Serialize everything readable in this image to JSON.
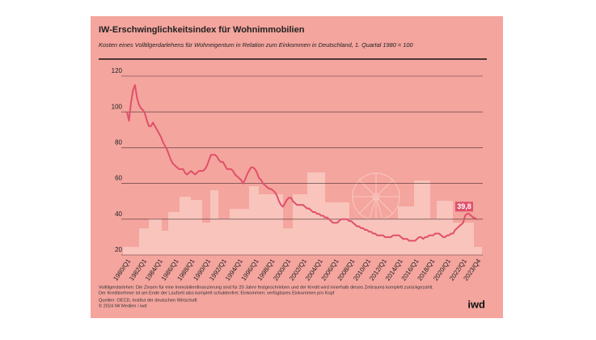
{
  "chart_data": {
    "type": "line",
    "title": "IW-Erschwinglichkeitsindex für Wohnimmobilien",
    "subtitle": "Kosten eines Volltilgerdarlehens für Wohneigentum in Relation zum Einkommen in Deutschland, 1. Quartal 1980 = 100",
    "notes": [
      "Volltilgerdarlehen: Die Zinsen für eine Immobilienfinanzierung sind für 20 Jahre festgeschrieben und der Kredit wird innerhalb dieses Zeitraums komplett zurückgezahlt.",
      "Der Kreditnehmer ist am Ende der Laufzeit also komplett schuldenfrei; Einkommen: verfügbares Einkommen pro Kopf",
      "Quellen: OECD, Institut der deutschen Wirtschaft",
      "© 2024 IW Medien / iwd"
    ],
    "logo": "iwd",
    "categories": [
      "1980/Q1",
      null,
      null,
      null,
      null,
      null,
      null,
      null,
      "1982/Q1",
      null,
      null,
      null,
      null,
      null,
      null,
      null,
      "1984/Q1",
      null,
      null,
      null,
      null,
      null,
      null,
      null,
      "1986/Q1",
      null,
      null,
      null,
      null,
      null,
      null,
      null,
      "1988/Q1",
      null,
      null,
      null,
      null,
      null,
      null,
      null,
      "1990/Q1",
      null,
      null,
      null,
      null,
      null,
      null,
      null,
      "1992/Q1",
      null,
      null,
      null,
      null,
      null,
      null,
      null,
      "1994/Q1",
      null,
      null,
      null,
      null,
      null,
      null,
      null,
      "1996/Q1",
      null,
      null,
      null,
      null,
      null,
      null,
      null,
      "1998/Q1",
      null,
      null,
      null,
      null,
      null,
      null,
      null,
      "2000/Q1",
      null,
      null,
      null,
      null,
      null,
      null,
      null,
      "2002/Q1",
      null,
      null,
      null,
      null,
      null,
      null,
      null,
      "2004/Q1",
      null,
      null,
      null,
      null,
      null,
      null,
      null,
      "2006/Q1",
      null,
      null,
      null,
      null,
      null,
      null,
      null,
      "2008/Q1",
      null,
      null,
      null,
      null,
      null,
      null,
      null,
      "2010/Q1",
      null,
      null,
      null,
      null,
      null,
      null,
      null,
      "2012/Q1",
      null,
      null,
      null,
      null,
      null,
      null,
      null,
      "2014/Q1",
      null,
      null,
      null,
      null,
      null,
      null,
      null,
      "2016/Q1",
      null,
      null,
      null,
      null,
      null,
      null,
      null,
      "2018/Q1",
      null,
      null,
      null,
      null,
      null,
      null,
      null,
      "2020/Q1",
      null,
      null,
      null,
      null,
      null,
      null,
      null,
      "2022/Q1",
      null,
      null,
      null,
      null,
      null,
      null,
      "2023/Q4"
    ],
    "series": [
      {
        "color": "#e0506a",
        "values": [
          100,
          95,
          105,
          112,
          115,
          108,
          104,
          102,
          101,
          99,
          95,
          92,
          92,
          94,
          92,
          90,
          88,
          86,
          83,
          81,
          79,
          76,
          73,
          71,
          70,
          69,
          68,
          68,
          68,
          66,
          65,
          66,
          67,
          66,
          65,
          66,
          67,
          67,
          67,
          68,
          70,
          73,
          76,
          76,
          76,
          75,
          73,
          72,
          72,
          70,
          68,
          68,
          68,
          67,
          65,
          64,
          63,
          62,
          60,
          62,
          65,
          67,
          69,
          69,
          68,
          66,
          63,
          62,
          60,
          59,
          58,
          57,
          57,
          56,
          55,
          53,
          50,
          48,
          47,
          49,
          51,
          52,
          52,
          50,
          49,
          48,
          48,
          48,
          48,
          47,
          46,
          46,
          45,
          44,
          44,
          43,
          43,
          42,
          42,
          41,
          41,
          40,
          39,
          38,
          38,
          38,
          39,
          40,
          40,
          40,
          40,
          39,
          39,
          38,
          37,
          36,
          36,
          35,
          35,
          34,
          34,
          33,
          33,
          32,
          32,
          31,
          31,
          31,
          31,
          30,
          30,
          30,
          30,
          31,
          31,
          31,
          31,
          30,
          29,
          29,
          29,
          28,
          28,
          28,
          28,
          29,
          30,
          30,
          29,
          30,
          30,
          31,
          31,
          31,
          32,
          32,
          32,
          31,
          30,
          30,
          31,
          31,
          32,
          32,
          34,
          35,
          36,
          37,
          38,
          42,
          43,
          43,
          42,
          41,
          40.5,
          39.8
        ],
        "value_labels": {
          "175": "39,8"
        }
      }
    ],
    "ylim": [
      20,
      120
    ],
    "yticks": [
      20,
      40,
      60,
      80,
      100,
      120
    ],
    "grid": true
  }
}
